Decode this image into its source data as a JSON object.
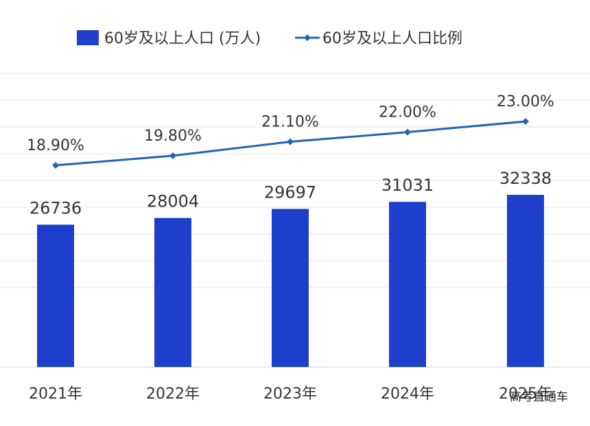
{
  "chart_data": {
    "type": "bar",
    "categories": [
      "2021年",
      "2022年",
      "2023年",
      "2024年",
      "2025年"
    ],
    "series": [
      {
        "name": "60岁及以上人口 (万人)",
        "kind": "bar",
        "values": [
          26736,
          28004,
          29697,
          31031,
          32338
        ],
        "color": "#1d3fcc"
      },
      {
        "name": "60岁及以上人口比例",
        "kind": "line",
        "values": [
          18.9,
          19.8,
          21.1,
          22.0,
          23.0
        ],
        "labels": [
          "18.90%",
          "19.80%",
          "21.10%",
          "22.00%",
          "23.00%"
        ],
        "color": "#2264b4"
      }
    ],
    "legend": "top",
    "grid": true
  },
  "watermark": "高考直通车"
}
